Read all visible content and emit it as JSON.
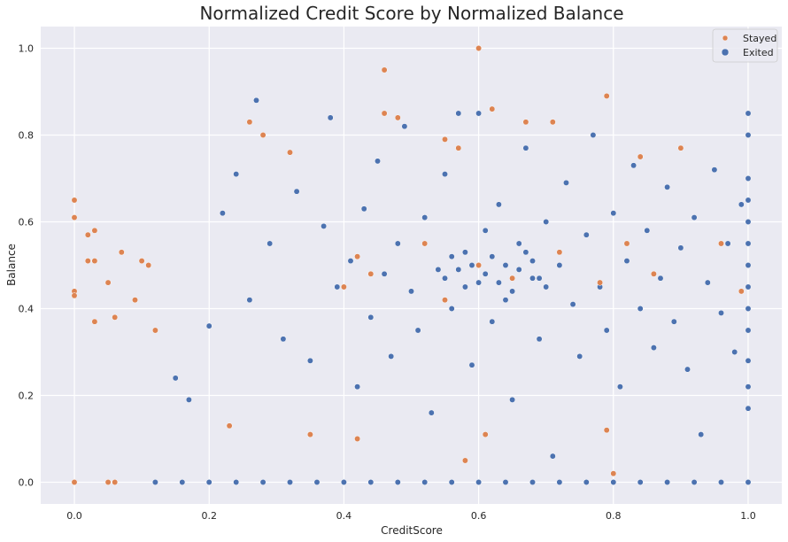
{
  "chart_data": {
    "type": "scatter",
    "title": "Normalized Credit Score by Normalized Balance",
    "xlabel": "CreditScore",
    "ylabel": "Balance",
    "xlim": [
      -0.05,
      1.05
    ],
    "ylim": [
      -0.05,
      1.05
    ],
    "xticks": [
      "0.0",
      "0.2",
      "0.4",
      "0.6",
      "0.8",
      "1.0"
    ],
    "yticks": [
      "0.0",
      "0.2",
      "0.4",
      "0.6",
      "0.8",
      "1.0"
    ],
    "grid": true,
    "legend_position": "top-right",
    "background": "#eaeaf2",
    "series": [
      {
        "name": "Exited",
        "color": "#4c72b0",
        "points": [
          [
            0.12,
            0
          ],
          [
            0.16,
            0
          ],
          [
            0.2,
            0
          ],
          [
            0.24,
            0
          ],
          [
            0.28,
            0
          ],
          [
            0.32,
            0
          ],
          [
            0.36,
            0
          ],
          [
            0.4,
            0
          ],
          [
            0.44,
            0
          ],
          [
            0.48,
            0
          ],
          [
            0.52,
            0
          ],
          [
            0.56,
            0
          ],
          [
            0.6,
            0
          ],
          [
            0.64,
            0
          ],
          [
            0.68,
            0
          ],
          [
            0.72,
            0
          ],
          [
            0.76,
            0
          ],
          [
            0.8,
            0
          ],
          [
            0.84,
            0
          ],
          [
            0.88,
            0
          ],
          [
            0.92,
            0
          ],
          [
            0.96,
            0
          ],
          [
            1.0,
            0
          ],
          [
            0.15,
            0.24
          ],
          [
            0.17,
            0.19
          ],
          [
            0.2,
            0.36
          ],
          [
            0.22,
            0.62
          ],
          [
            0.24,
            0.71
          ],
          [
            0.26,
            0.42
          ],
          [
            0.27,
            0.88
          ],
          [
            0.29,
            0.55
          ],
          [
            0.31,
            0.33
          ],
          [
            0.33,
            0.67
          ],
          [
            0.35,
            0.28
          ],
          [
            0.37,
            0.59
          ],
          [
            0.38,
            0.84
          ],
          [
            0.39,
            0.45
          ],
          [
            0.41,
            0.51
          ],
          [
            0.42,
            0.22
          ],
          [
            0.43,
            0.63
          ],
          [
            0.44,
            0.38
          ],
          [
            0.45,
            0.74
          ],
          [
            0.46,
            0.48
          ],
          [
            0.47,
            0.29
          ],
          [
            0.48,
            0.55
          ],
          [
            0.49,
            0.82
          ],
          [
            0.5,
            0.44
          ],
          [
            0.51,
            0.35
          ],
          [
            0.52,
            0.61
          ],
          [
            0.53,
            0.16
          ],
          [
            0.54,
            0.49
          ],
          [
            0.55,
            0.71
          ],
          [
            0.56,
            0.4
          ],
          [
            0.57,
            0.85
          ],
          [
            0.58,
            0.53
          ],
          [
            0.59,
            0.27
          ],
          [
            0.6,
            0.46
          ],
          [
            0.6,
            0.85
          ],
          [
            0.61,
            0.58
          ],
          [
            0.62,
            0.37
          ],
          [
            0.63,
            0.64
          ],
          [
            0.64,
            0.42
          ],
          [
            0.65,
            0.19
          ],
          [
            0.66,
            0.55
          ],
          [
            0.67,
            0.77
          ],
          [
            0.68,
            0.47
          ],
          [
            0.69,
            0.33
          ],
          [
            0.7,
            0.6
          ],
          [
            0.71,
            0.06
          ],
          [
            0.72,
            0.5
          ],
          [
            0.73,
            0.69
          ],
          [
            0.74,
            0.41
          ],
          [
            0.75,
            0.29
          ],
          [
            0.76,
            0.57
          ],
          [
            0.77,
            0.8
          ],
          [
            0.78,
            0.45
          ],
          [
            0.79,
            0.35
          ],
          [
            0.8,
            0.62
          ],
          [
            0.81,
            0.22
          ],
          [
            0.82,
            0.51
          ],
          [
            0.83,
            0.73
          ],
          [
            0.84,
            0.4
          ],
          [
            0.85,
            0.58
          ],
          [
            0.86,
            0.31
          ],
          [
            0.87,
            0.47
          ],
          [
            0.88,
            0.68
          ],
          [
            0.89,
            0.37
          ],
          [
            0.9,
            0.54
          ],
          [
            0.91,
            0.26
          ],
          [
            0.92,
            0.61
          ],
          [
            0.93,
            0.11
          ],
          [
            0.94,
            0.46
          ],
          [
            0.95,
            0.72
          ],
          [
            0.96,
            0.39
          ],
          [
            0.97,
            0.55
          ],
          [
            0.98,
            0.3
          ],
          [
            0.99,
            0.64
          ],
          [
            1.0,
            0.17
          ],
          [
            1.0,
            0.22
          ],
          [
            1.0,
            0.28
          ],
          [
            1.0,
            0.35
          ],
          [
            1.0,
            0.4
          ],
          [
            1.0,
            0.45
          ],
          [
            1.0,
            0.5
          ],
          [
            1.0,
            0.55
          ],
          [
            1.0,
            0.6
          ],
          [
            1.0,
            0.65
          ],
          [
            1.0,
            0.7
          ],
          [
            1.0,
            0.8
          ],
          [
            1.0,
            0.85
          ],
          [
            0.58,
            0.45
          ],
          [
            0.59,
            0.5
          ],
          [
            0.61,
            0.48
          ],
          [
            0.62,
            0.52
          ],
          [
            0.63,
            0.46
          ],
          [
            0.64,
            0.5
          ],
          [
            0.65,
            0.44
          ],
          [
            0.66,
            0.49
          ],
          [
            0.67,
            0.53
          ],
          [
            0.68,
            0.51
          ],
          [
            0.69,
            0.47
          ],
          [
            0.7,
            0.45
          ],
          [
            0.55,
            0.47
          ],
          [
            0.56,
            0.52
          ],
          [
            0.57,
            0.49
          ]
        ]
      },
      {
        "name": "Stayed",
        "color": "#dd8452",
        "points": [
          [
            0.0,
            0
          ],
          [
            0.05,
            0
          ],
          [
            0.06,
            0
          ],
          [
            0.0,
            0.65
          ],
          [
            0.0,
            0.61
          ],
          [
            0.0,
            0.44
          ],
          [
            0.0,
            0.43
          ],
          [
            0.02,
            0.57
          ],
          [
            0.02,
            0.51
          ],
          [
            0.03,
            0.58
          ],
          [
            0.03,
            0.51
          ],
          [
            0.03,
            0.37
          ],
          [
            0.05,
            0.46
          ],
          [
            0.06,
            0.38
          ],
          [
            0.07,
            0.53
          ],
          [
            0.09,
            0.42
          ],
          [
            0.1,
            0.51
          ],
          [
            0.11,
            0.5
          ],
          [
            0.12,
            0.35
          ],
          [
            0.23,
            0.13
          ],
          [
            0.26,
            0.83
          ],
          [
            0.28,
            0.8
          ],
          [
            0.32,
            0.76
          ],
          [
            0.35,
            0.11
          ],
          [
            0.42,
            0.1
          ],
          [
            0.46,
            0.95
          ],
          [
            0.46,
            0.85
          ],
          [
            0.48,
            0.84
          ],
          [
            0.55,
            0.79
          ],
          [
            0.57,
            0.77
          ],
          [
            0.58,
            0.05
          ],
          [
            0.6,
            1.0
          ],
          [
            0.61,
            0.11
          ],
          [
            0.62,
            0.86
          ],
          [
            0.67,
            0.83
          ],
          [
            0.71,
            0.83
          ],
          [
            0.79,
            0.12
          ],
          [
            0.79,
            0.89
          ],
          [
            0.8,
            0.02
          ],
          [
            0.84,
            0.75
          ],
          [
            0.9,
            0.77
          ],
          [
            0.96,
            0.55
          ],
          [
            0.99,
            0.44
          ],
          [
            0.4,
            0.45
          ],
          [
            0.42,
            0.52
          ],
          [
            0.44,
            0.48
          ],
          [
            0.52,
            0.55
          ],
          [
            0.55,
            0.42
          ],
          [
            0.6,
            0.5
          ],
          [
            0.65,
            0.47
          ],
          [
            0.72,
            0.53
          ],
          [
            0.78,
            0.46
          ],
          [
            0.82,
            0.55
          ],
          [
            0.86,
            0.48
          ]
        ]
      }
    ]
  }
}
